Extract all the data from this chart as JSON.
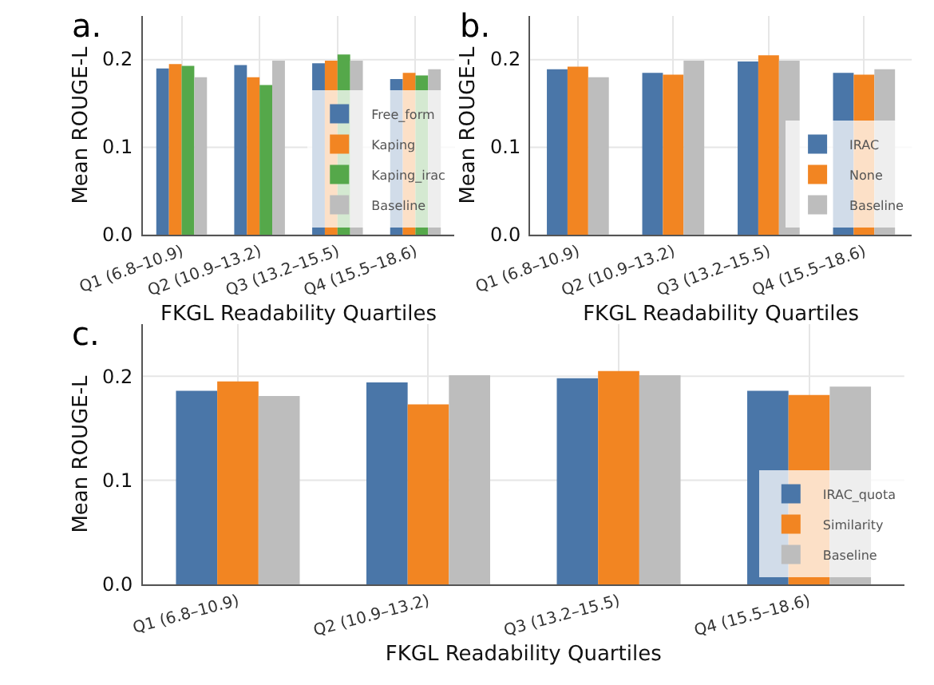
{
  "chart_data": [
    {
      "type": "bar",
      "title": "a.",
      "xlabel": "FKGL Readability Quartiles",
      "ylabel": "Mean ROUGE-L",
      "categories": [
        "Q1 (6.8–10.9)",
        "Q2 (10.9–13.2)",
        "Q3 (13.2–15.5)",
        "Q4 (15.5–18.6)"
      ],
      "series": [
        {
          "name": "Free_form",
          "color": "#4a76a8",
          "values": [
            0.19,
            0.194,
            0.196,
            0.178
          ]
        },
        {
          "name": "Kaping",
          "color": "#f28522",
          "values": [
            0.195,
            0.18,
            0.199,
            0.185
          ]
        },
        {
          "name": "Kaping_irac",
          "color": "#55a84a",
          "values": [
            0.193,
            0.171,
            0.206,
            0.182
          ]
        },
        {
          "name": "Baseline",
          "color": "#bdbdbd",
          "values": [
            0.18,
            0.199,
            0.199,
            0.189
          ]
        }
      ],
      "ylim": [
        0,
        0.25
      ],
      "yticks": [
        {
          "value": 0,
          "label": "0.0"
        },
        {
          "value": 0.1,
          "label": "0.1"
        },
        {
          "value": 0.2,
          "label": "0.2"
        }
      ],
      "grid": true,
      "legend": "bottom right"
    },
    {
      "type": "bar",
      "title": "b.",
      "xlabel": "FKGL Readability Quartiles",
      "ylabel": "Mean ROUGE-L",
      "categories": [
        "Q1 (6.8–10.9)",
        "Q2 (10.9–13.2)",
        "Q3 (13.2–15.5)",
        "Q4 (15.5–18.6)"
      ],
      "series": [
        {
          "name": "IRAC",
          "color": "#4a76a8",
          "values": [
            0.189,
            0.185,
            0.198,
            0.185
          ]
        },
        {
          "name": "None",
          "color": "#f28522",
          "values": [
            0.192,
            0.183,
            0.205,
            0.183
          ]
        },
        {
          "name": "Baseline",
          "color": "#bdbdbd",
          "values": [
            0.18,
            0.199,
            0.199,
            0.189
          ]
        }
      ],
      "ylim": [
        0,
        0.25
      ],
      "yticks": [
        {
          "value": 0,
          "label": "0.0"
        },
        {
          "value": 0.1,
          "label": "0.1"
        },
        {
          "value": 0.2,
          "label": "0.2"
        }
      ],
      "grid": true,
      "legend": "bottom right"
    },
    {
      "type": "bar",
      "title": "c.",
      "xlabel": "FKGL Readability Quartiles",
      "ylabel": "Mean ROUGE-L",
      "categories": [
        "Q1 (6.8–10.9)",
        "Q2 (10.9–13.2)",
        "Q3 (13.2–15.5)",
        "Q4 (15.5–18.6)"
      ],
      "series": [
        {
          "name": "IRAC_quota",
          "color": "#4a76a8",
          "values": [
            0.186,
            0.194,
            0.198,
            0.186
          ]
        },
        {
          "name": "Similarity",
          "color": "#f28522",
          "values": [
            0.195,
            0.173,
            0.205,
            0.182
          ]
        },
        {
          "name": "Baseline",
          "color": "#bdbdbd",
          "values": [
            0.181,
            0.201,
            0.201,
            0.19
          ]
        }
      ],
      "ylim": [
        0,
        0.25
      ],
      "yticks": [
        {
          "value": 0,
          "label": "0.0"
        },
        {
          "value": 0.1,
          "label": "0.1"
        },
        {
          "value": 0.2,
          "label": "0.2"
        }
      ],
      "grid": true,
      "legend": "bottom right"
    }
  ]
}
